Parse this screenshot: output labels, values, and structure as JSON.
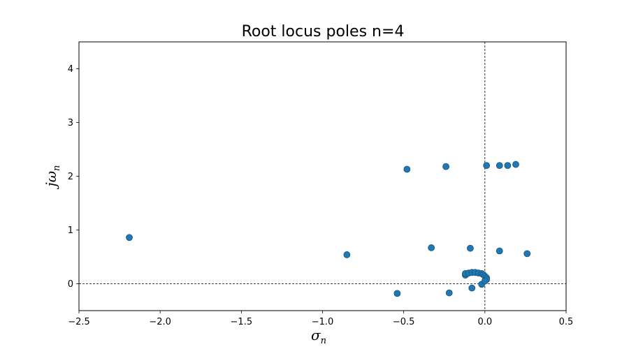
{
  "chart_data": {
    "type": "scatter",
    "title": "Root locus poles n=4",
    "xlabel": {
      "main": "σ",
      "sub": "n"
    },
    "ylabel": {
      "main": "jω",
      "sub": "n"
    },
    "xlim": [
      -2.5,
      0.5
    ],
    "ylim": [
      -0.5,
      4.5
    ],
    "x_ticks": [
      -2.5,
      -2.0,
      -1.5,
      -1.0,
      -0.5,
      0.0,
      0.5
    ],
    "x_tick_labels": [
      "−2.5",
      "−2.0",
      "−1.5",
      "−1.0",
      "−0.5",
      "0.0",
      "0.5"
    ],
    "y_ticks": [
      0,
      1,
      2,
      3,
      4
    ],
    "y_tick_labels": [
      "0",
      "1",
      "2",
      "3",
      "4"
    ],
    "reference_lines": {
      "x": 0,
      "y": 0,
      "style": "dashed"
    },
    "grid": false,
    "series": [
      {
        "color": "#1f77b4",
        "points": [
          [
            -2.19,
            0.86
          ],
          [
            -0.85,
            0.54
          ],
          [
            -0.54,
            -0.18
          ],
          [
            -0.48,
            2.13
          ],
          [
            -0.33,
            0.67
          ],
          [
            -0.24,
            2.18
          ],
          [
            -0.22,
            -0.17
          ],
          [
            -0.09,
            0.66
          ],
          [
            -0.08,
            -0.08
          ],
          [
            -0.02,
            -0.01
          ],
          [
            0.01,
            2.2
          ],
          [
            0.09,
            2.2
          ],
          [
            0.14,
            2.2
          ],
          [
            0.19,
            2.22
          ],
          [
            0.09,
            0.61
          ],
          [
            0.26,
            0.56
          ],
          [
            -0.12,
            0.16
          ],
          [
            -0.12,
            0.19
          ],
          [
            -0.1,
            0.2
          ],
          [
            -0.08,
            0.21
          ],
          [
            -0.06,
            0.21
          ],
          [
            -0.04,
            0.2
          ],
          [
            -0.02,
            0.19
          ],
          [
            -0.01,
            0.17
          ],
          [
            0.0,
            0.14
          ],
          [
            0.01,
            0.11
          ],
          [
            0.01,
            0.08
          ],
          [
            0.0,
            0.05
          ]
        ]
      }
    ]
  }
}
